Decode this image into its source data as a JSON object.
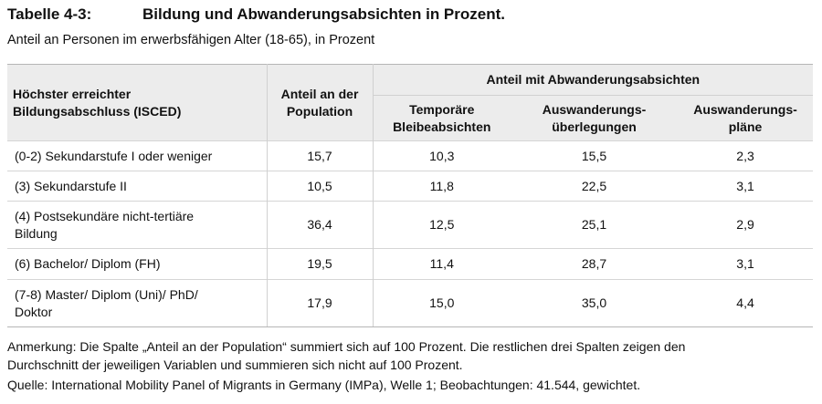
{
  "title": {
    "label": "Tabelle 4-3:",
    "text": "Bildung und Abwanderungsabsichten in Prozent."
  },
  "subtitle": "Anteil an Personen im erwerbsfähigen Alter (18-65), in Prozent",
  "table": {
    "head": {
      "col_label": [
        "Höchster erreichter",
        "Bildungsabschluss (ISCED)"
      ],
      "col_population": [
        "Anteil an der",
        "Population"
      ],
      "group": "Anteil mit Abwanderungsabsichten",
      "sub": [
        [
          "Temporäre",
          "Bleibeabsichten"
        ],
        [
          "Auswanderungs-",
          "überlegungen"
        ],
        [
          "Auswanderungs-",
          "pläne"
        ]
      ]
    },
    "rows": [
      {
        "label": [
          "(0-2) Sekundarstufe I oder weniger"
        ],
        "population": "15,7",
        "temporary": "10,3",
        "considering": "15,5",
        "plans": "2,3"
      },
      {
        "label": [
          "(3) Sekundarstufe II"
        ],
        "population": "10,5",
        "temporary": "11,8",
        "considering": "22,5",
        "plans": "3,1"
      },
      {
        "label": [
          "(4) Postsekundäre nicht-tertiäre",
          "Bildung"
        ],
        "population": "36,4",
        "temporary": "12,5",
        "considering": "25,1",
        "plans": "2,9"
      },
      {
        "label": [
          "(6) Bachelor/ Diplom (FH)"
        ],
        "population": "19,5",
        "temporary": "11,4",
        "considering": "28,7",
        "plans": "3,1"
      },
      {
        "label": [
          "(7-8) Master/ Diplom (Uni)/ PhD/",
          "Doktor"
        ],
        "population": "17,9",
        "temporary": "15,0",
        "considering": "35,0",
        "plans": "4,4"
      }
    ]
  },
  "note": [
    "Anmerkung: Die Spalte „Anteil an der Population“ summiert sich auf 100 Prozent. Die restlichen drei Spalten zeigen den",
    "Durchschnitt der jeweiligen Variablen und summieren sich nicht auf 100 Prozent."
  ],
  "source": "Quelle: International Mobility Panel of Migrants in Germany (IMPa), Welle 1; Beobachtungen: 41.544, gewichtet."
}
